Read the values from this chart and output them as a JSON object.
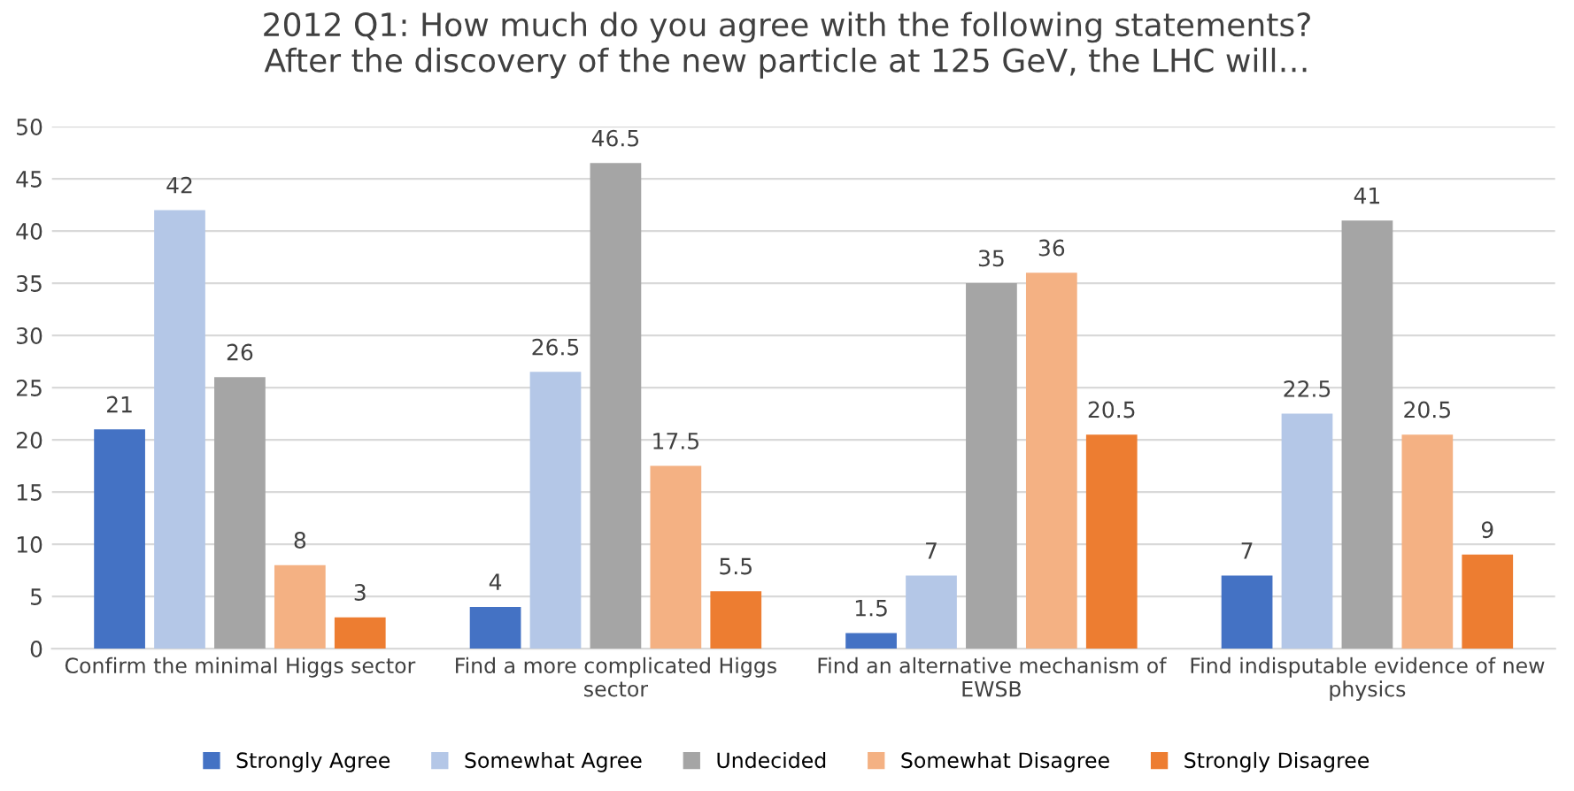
{
  "chart_data": {
    "type": "bar",
    "title": "2012 Q1: How much do you agree with the following statements?\nAfter the discovery of the new particle at 125 GeV, the LHC will…",
    "categories": [
      "Confirm the minimal Higgs sector",
      "Find a more complicated Higgs sector",
      "Find an alternative mechanism of EWSB",
      "Find indisputable evidence of new physics"
    ],
    "series": [
      {
        "name": "Strongly Agree",
        "color": "#4472c4",
        "values": [
          21,
          4,
          1.5,
          7
        ]
      },
      {
        "name": "Somewhat Agree",
        "color": "#b4c7e7",
        "values": [
          42,
          26.5,
          7,
          22.5
        ]
      },
      {
        "name": "Undecided",
        "color": "#a5a5a5",
        "values": [
          26,
          46.5,
          35,
          41
        ]
      },
      {
        "name": "Somewhat Disagree",
        "color": "#f4b183",
        "values": [
          8,
          17.5,
          36,
          20.5
        ]
      },
      {
        "name": "Strongly Disagree",
        "color": "#ed7d31",
        "values": [
          3,
          5.5,
          20.5,
          9
        ]
      }
    ],
    "ylim": [
      0,
      50
    ],
    "yticks": [
      0,
      5,
      10,
      15,
      20,
      25,
      30,
      35,
      40,
      45,
      50
    ],
    "grid": "y",
    "legend": "bottom",
    "data_labels": true
  }
}
